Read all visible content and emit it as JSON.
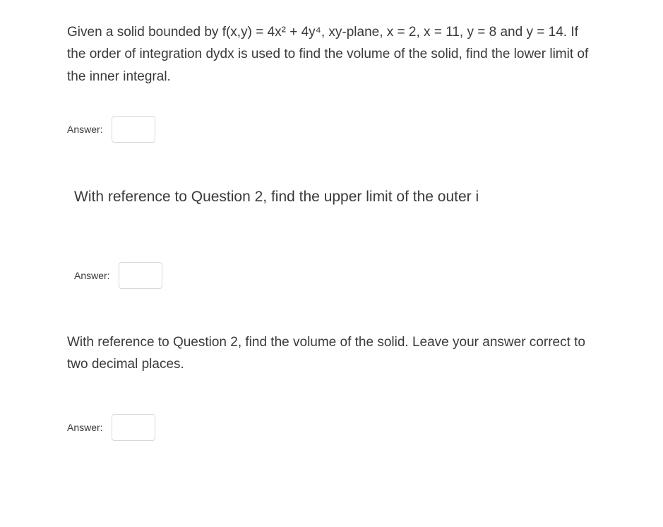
{
  "question1": {
    "text": "Given a solid bounded by f(x,y) = 4x² + 4y⁴, xy-plane, x = 2, x = 11, y = 8 and y = 14. If the order of integration dydx is used to find the volume of the solid, find the lower limit of the inner integral.",
    "answer_label": "Answer:",
    "answer_value": ""
  },
  "question2": {
    "text": "With reference to Question 2, find the upper limit of the outer i",
    "answer_label": "Answer:",
    "answer_value": ""
  },
  "question3": {
    "text": "With reference to Question 2, find the volume of the solid. Leave your answer correct to two decimal places.",
    "answer_label": "Answer:",
    "answer_value": ""
  },
  "styling": {
    "background_color": "#ffffff",
    "text_color": "#3a3a3a",
    "input_border_color": "#d8d8d8",
    "input_border_radius": 4,
    "body_width": 939,
    "body_height": 746,
    "question_fontsize": 19,
    "question_large_fontsize": 21,
    "answer_label_fontsize": 14,
    "input_width": 62,
    "input_height": 38
  }
}
